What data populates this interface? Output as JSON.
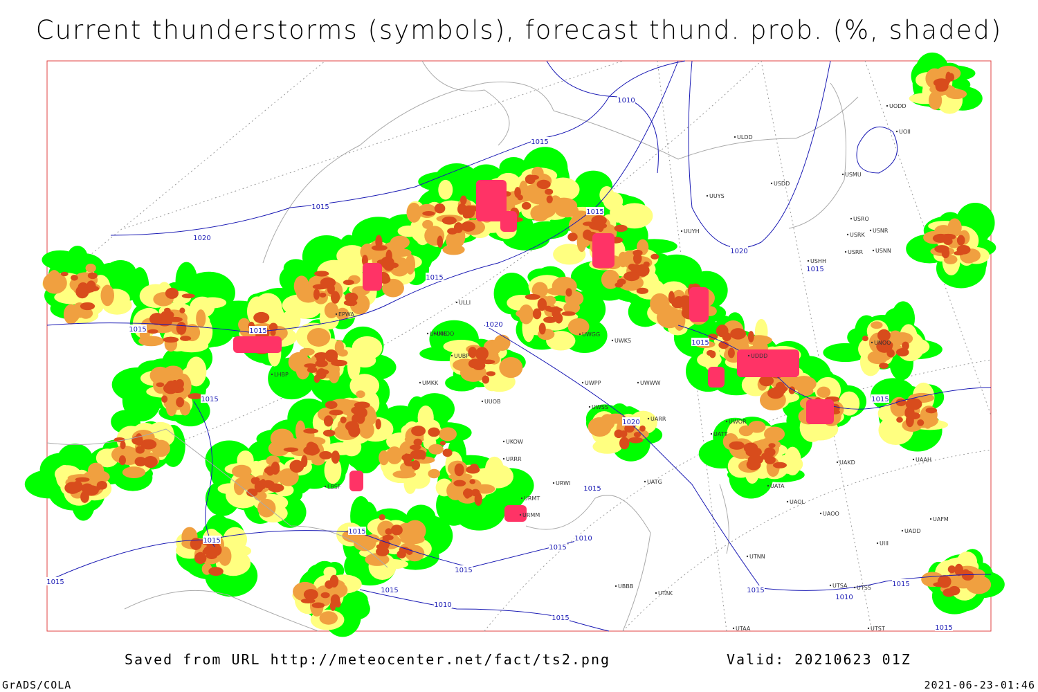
{
  "title": "Current thunderstorms (symbols), forecast thund. prob. (%, shaded)",
  "footer": {
    "saved": "Saved from URL http://meteocenter.net/fact/ts2.png",
    "valid": "Valid: 20210623 01Z",
    "software": "GrADS/COLA",
    "timestamp": "2021-06-23-01:46"
  },
  "isobar_labels": [
    "1010",
    "1015",
    "1015",
    "1020",
    "1015",
    "1015",
    "1020",
    "1015",
    "1015",
    "1015",
    "1020",
    "1015",
    "1015",
    "1020",
    "1015",
    "1015",
    "1015",
    "1010",
    "1015",
    "1015",
    "1015",
    "1015",
    "1015",
    "1015",
    "1010",
    "1015",
    "1010",
    "1015",
    "1015"
  ],
  "stations": [
    "ULDD",
    "USDD",
    "USMU",
    "UUYS",
    "UUYH",
    "USRO",
    "USRK",
    "USNR",
    "USRR",
    "USNN",
    "USHH",
    "UODD",
    "UOII",
    "ULLI",
    "UMMS",
    "UMOO",
    "UUBP",
    "UMKK",
    "UUOB",
    "UKOW",
    "URRR",
    "URWI",
    "URMT",
    "URMM",
    "UATG",
    "UATA",
    "UAOL",
    "UAOO",
    "UTNN",
    "UTSA",
    "UTSS",
    "UTAA",
    "UTST",
    "UBBB",
    "UTAK",
    "UAKD",
    "UNOO",
    "UAAH",
    "UADD",
    "UAFM",
    "UWGG",
    "UWKS",
    "UWPP",
    "UWSS",
    "UWWW",
    "UARR",
    "UWOR",
    "UATT",
    "UDDD",
    "UIII",
    "LHBP",
    "LBSF",
    "EPWA"
  ]
}
